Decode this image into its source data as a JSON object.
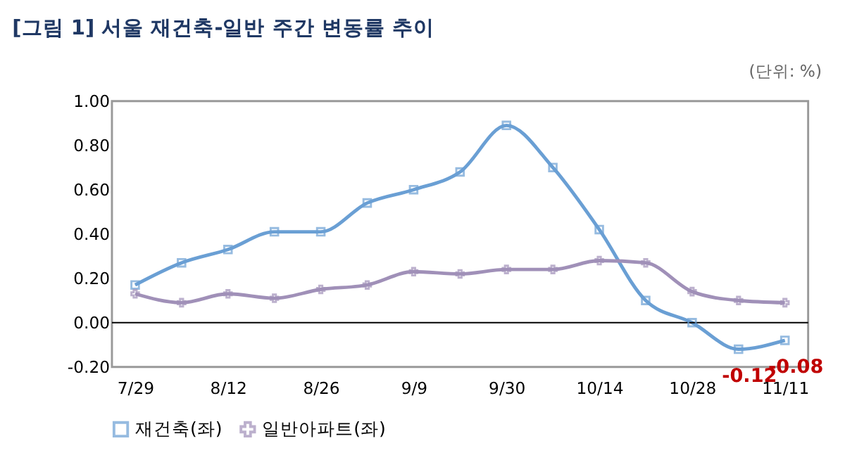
{
  "chart_data": {
    "type": "line",
    "title": "[그림 1] 서울 재건축-일반 주간 변동률 추이",
    "annotations": [
      "(단위: %)"
    ],
    "categories": [
      "7/29",
      null,
      "8/12",
      null,
      "8/26",
      null,
      "9/9",
      null,
      "9/30",
      null,
      "10/14",
      null,
      "10/28",
      null,
      "11/11"
    ],
    "series": [
      {
        "name": "재건축(좌)",
        "color": "#6a9fd4",
        "marker": "square",
        "values": [
          0.17,
          0.27,
          0.33,
          0.41,
          0.41,
          0.54,
          0.6,
          0.68,
          0.89,
          0.7,
          0.42,
          0.1,
          0.0,
          -0.12,
          -0.08
        ],
        "value_labels": [
          null,
          null,
          null,
          null,
          null,
          null,
          null,
          null,
          null,
          null,
          null,
          null,
          null,
          "-0.12",
          "-0.08"
        ]
      },
      {
        "name": "일반아파트(좌)",
        "color": "#a090b8",
        "marker": "cross",
        "values": [
          0.13,
          0.09,
          0.13,
          0.11,
          0.15,
          0.17,
          0.23,
          0.22,
          0.24,
          0.24,
          0.28,
          0.27,
          0.14,
          0.1,
          0.09
        ]
      }
    ],
    "ylim": [
      -0.2,
      1.0
    ],
    "yticks": [
      {
        "value": -0.2,
        "label": "-0.20"
      },
      {
        "value": 0,
        "label": "0.00"
      },
      {
        "value": 0.2,
        "label": "0.20"
      },
      {
        "value": 0.4,
        "label": "0.40"
      },
      {
        "value": 0.6,
        "label": "0.60"
      },
      {
        "value": 0.8,
        "label": "0.80"
      },
      {
        "value": 1.0,
        "label": "1.00"
      }
    ],
    "ref_lines": [
      {
        "axis": "y",
        "value": 0,
        "color": "#000000"
      }
    ],
    "grid": false,
    "legend": "bottom",
    "line_style": "solid"
  }
}
